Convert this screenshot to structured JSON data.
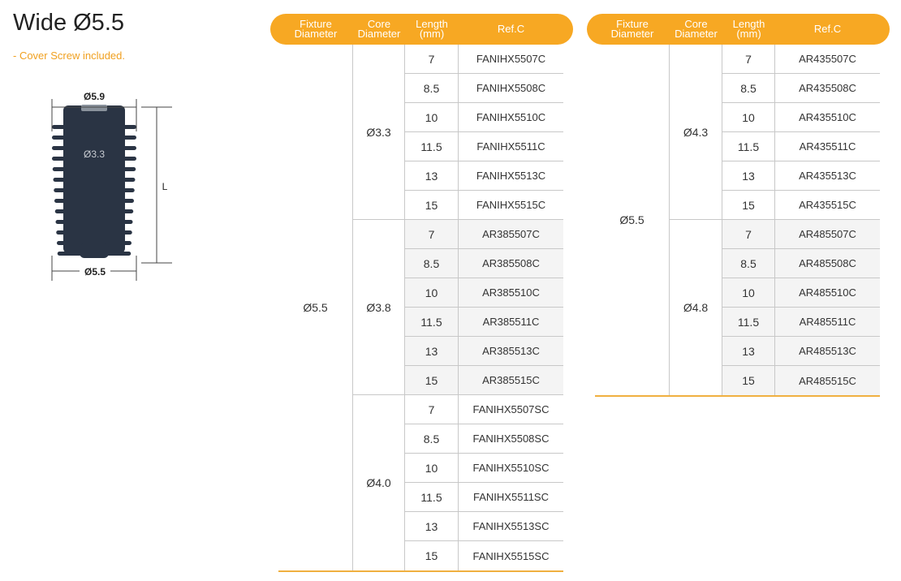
{
  "header": {
    "title": "Wide Ø5.5",
    "note": "- Cover Screw included."
  },
  "drawing": {
    "top_diameter": "Ø5.9",
    "core_diameter": "Ø3.3",
    "length": "L",
    "bottom_diameter": "Ø5.5"
  },
  "tables": [
    {
      "headers": [
        "Fixture\nDiameter",
        "Core\nDiameter",
        "Length\n(mm)",
        "Ref.C"
      ],
      "fixture": "Ø5.5",
      "groups": [
        {
          "core": "Ø3.3",
          "rows": [
            [
              "7",
              "FANIHX5507C"
            ],
            [
              "8.5",
              "FANIHX5508C"
            ],
            [
              "10",
              "FANIHX5510C"
            ],
            [
              "11.5",
              "FANIHX5511C"
            ],
            [
              "13",
              "FANIHX5513C"
            ],
            [
              "15",
              "FANIHX5515C"
            ]
          ]
        },
        {
          "core": "Ø3.8",
          "rows": [
            [
              "7",
              "AR385507C"
            ],
            [
              "8.5",
              "AR385508C"
            ],
            [
              "10",
              "AR385510C"
            ],
            [
              "11.5",
              "AR385511C"
            ],
            [
              "13",
              "AR385513C"
            ],
            [
              "15",
              "AR385515C"
            ]
          ]
        },
        {
          "core": "Ø4.0",
          "rows": [
            [
              "7",
              "FANIHX5507SC"
            ],
            [
              "8.5",
              "FANIHX5508SC"
            ],
            [
              "10",
              "FANIHX5510SC"
            ],
            [
              "11.5",
              "FANIHX5511SC"
            ],
            [
              "13",
              "FANIHX5513SC"
            ],
            [
              "15",
              "FANIHX5515SC"
            ]
          ]
        }
      ]
    },
    {
      "headers": [
        "Fixture\nDiameter",
        "Core\nDiameter",
        "Length\n(mm)",
        "Ref.C"
      ],
      "fixture": "Ø5.5",
      "groups": [
        {
          "core": "Ø4.3",
          "rows": [
            [
              "7",
              "AR435507C"
            ],
            [
              "8.5",
              "AR435508C"
            ],
            [
              "10",
              "AR435510C"
            ],
            [
              "11.5",
              "AR435511C"
            ],
            [
              "13",
              "AR435513C"
            ],
            [
              "15",
              "AR435515C"
            ]
          ]
        },
        {
          "core": "Ø4.8",
          "rows": [
            [
              "7",
              "AR485507C"
            ],
            [
              "8.5",
              "AR485508C"
            ],
            [
              "10",
              "AR485510C"
            ],
            [
              "11.5",
              "AR485511C"
            ],
            [
              "13",
              "AR485513C"
            ],
            [
              "15",
              "AR485515C"
            ]
          ]
        }
      ]
    }
  ]
}
